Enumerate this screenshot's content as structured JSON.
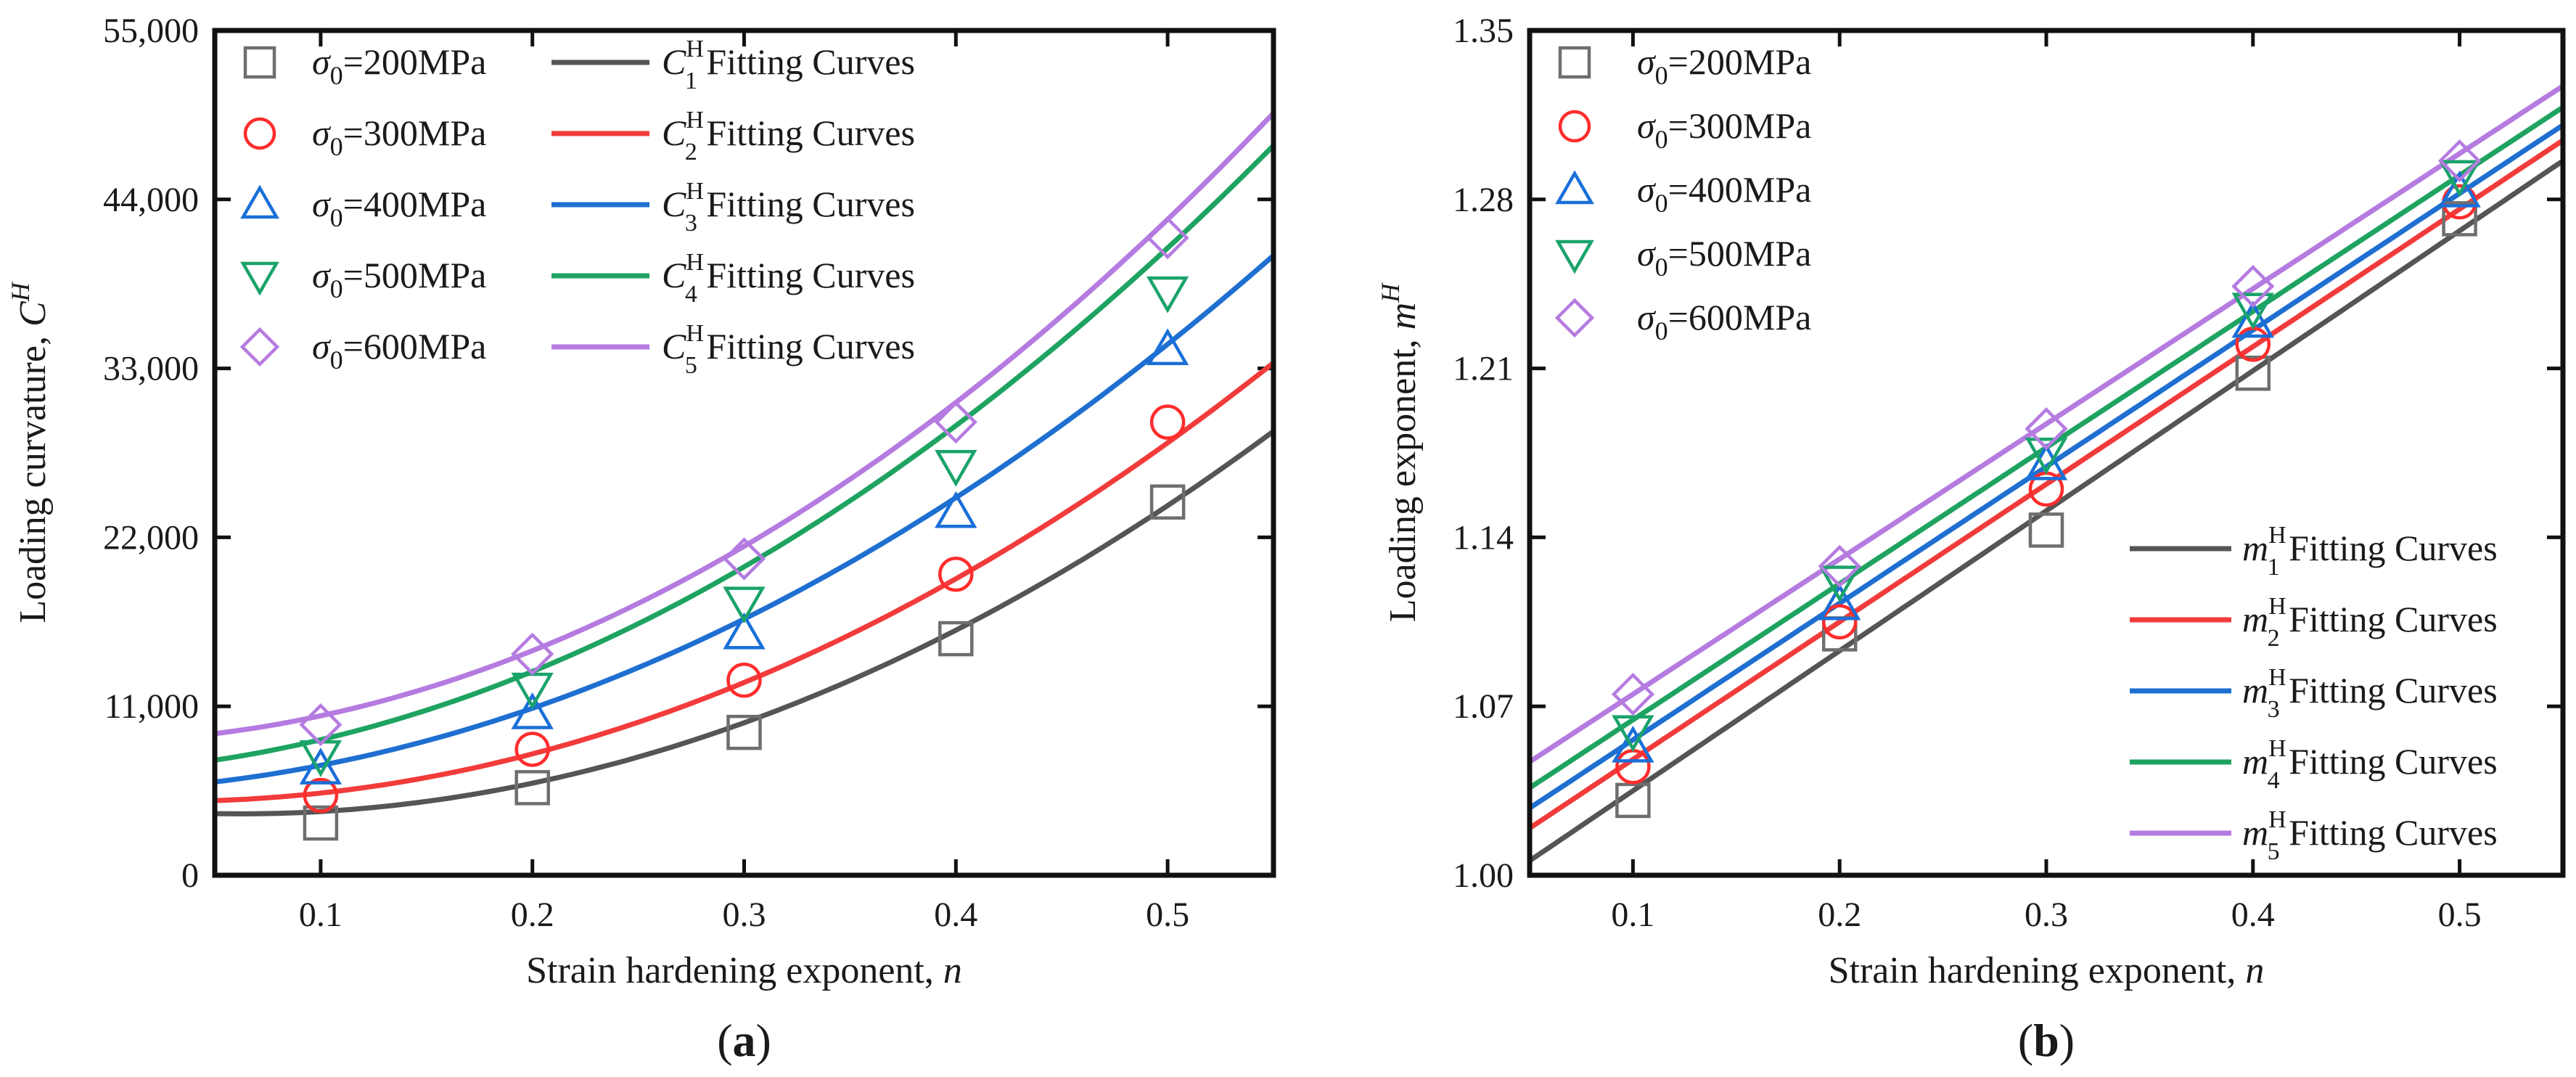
{
  "chart_data": [
    {
      "type": "line",
      "panel_label": "a",
      "title": "",
      "xlabel": "Strain hardening exponent,",
      "xlabel_var": "n",
      "ylabel": "Loading curvature,",
      "ylabel_var": "C",
      "ylabel_sup": "H",
      "xlim": [
        0.05,
        0.55
      ],
      "ylim": [
        0,
        55000
      ],
      "xticks": [
        0.1,
        0.2,
        0.3,
        0.4,
        0.5
      ],
      "xtick_labels": [
        "0.1",
        "0.2",
        "0.3",
        "0.4",
        "0.5"
      ],
      "yticks": [
        0,
        11000,
        22000,
        33000,
        44000,
        55000
      ],
      "ytick_labels": [
        "0",
        "11,000",
        "22,000",
        "33,000",
        "44,000",
        "55,000"
      ],
      "legend_placement": "top-left",
      "x": [
        0.1,
        0.2,
        0.3,
        0.4,
        0.5
      ],
      "series": [
        {
          "name": "σ0=200MPa",
          "sigma": "σ",
          "sub": "0",
          "value_text": "=200MPa",
          "marker": "square",
          "color": "#6e6e6e",
          "values": [
            3400,
            5700,
            9300,
            15400,
            24300
          ]
        },
        {
          "name": "σ0=300MPa",
          "sigma": "σ",
          "sub": "0",
          "value_text": "=300MPa",
          "marker": "circle",
          "color": "#ff2d2d",
          "values": [
            5200,
            8200,
            12700,
            19600,
            29500
          ]
        },
        {
          "name": "σ0=400MPa",
          "sigma": "σ",
          "sub": "0",
          "value_text": "=400MPa",
          "marker": "triangle-up",
          "color": "#1a6fd8",
          "values": [
            6900,
            10500,
            15700,
            23600,
            34200
          ]
        },
        {
          "name": "σ0=500MPa",
          "sigma": "σ",
          "sub": "0",
          "value_text": "=500MPa",
          "marker": "triangle-down",
          "color": "#1aa36b",
          "values": [
            7800,
            12200,
            17800,
            26700,
            38000
          ]
        },
        {
          "name": "σ0=600MPa",
          "sigma": "σ",
          "sub": "0",
          "value_text": "=600MPa",
          "marker": "diamond",
          "color": "#b57be0",
          "values": [
            9800,
            14400,
            20600,
            29500,
            41500
          ]
        }
      ],
      "fits": [
        {
          "name": "C1H Fitting Curves",
          "var": "C",
          "sup": "H",
          "sub": "1",
          "text": "Fitting Curves",
          "color": "#555555",
          "coeffs": [
            4394,
            -12900,
            104490
          ]
        },
        {
          "name": "C2H Fitting Curves",
          "var": "C",
          "sup": "H",
          "sub": "2",
          "text": "Fitting Curves",
          "color": "#f23b3b",
          "coeffs": [
            4900,
            -6000,
            105000
          ]
        },
        {
          "name": "C3H Fitting Curves",
          "var": "C",
          "sup": "H",
          "sub": "3",
          "text": "Fitting Curves",
          "color": "#1f6fd1",
          "coeffs": [
            5524,
            5850,
            104490
          ]
        },
        {
          "name": "C4H Fitting Curves",
          "var": "C",
          "sup": "H",
          "sub": "4",
          "text": "Fitting Curves",
          "color": "#1ea360",
          "coeffs": [
            6758,
            8780,
            118760
          ]
        },
        {
          "name": "C5H Fitting Curves",
          "var": "C",
          "sup": "H",
          "sub": "5",
          "text": "Fitting Curves",
          "color": "#b57be0",
          "coeffs": [
            8700,
            4000,
            128000
          ]
        }
      ]
    },
    {
      "type": "line",
      "panel_label": "b",
      "title": "",
      "xlabel": "Strain hardening exponent,",
      "xlabel_var": "n",
      "ylabel": "Loading exponent,",
      "ylabel_var": "m",
      "ylabel_sup": "H",
      "xlim": [
        0.05,
        0.55
      ],
      "ylim": [
        1.0,
        1.35
      ],
      "xticks": [
        0.1,
        0.2,
        0.3,
        0.4,
        0.5
      ],
      "xtick_labels": [
        "0.1",
        "0.2",
        "0.3",
        "0.4",
        "0.5"
      ],
      "yticks": [
        1.0,
        1.07,
        1.14,
        1.21,
        1.28,
        1.35
      ],
      "ytick_labels": [
        "1.00",
        "1.07",
        "1.14",
        "1.21",
        "1.28",
        "1.35"
      ],
      "legend_placement": "top-left / bottom-right",
      "x": [
        0.1,
        0.2,
        0.3,
        0.4,
        0.5
      ],
      "series": [
        {
          "name": "σ0=200MPa",
          "sigma": "σ",
          "sub": "0",
          "value_text": "=200MPa",
          "marker": "square",
          "color": "#6e6e6e",
          "values": [
            1.031,
            1.1,
            1.143,
            1.208,
            1.272
          ]
        },
        {
          "name": "σ0=300MPa",
          "sigma": "σ",
          "sub": "0",
          "value_text": "=300MPa",
          "marker": "circle",
          "color": "#ff2d2d",
          "values": [
            1.045,
            1.105,
            1.16,
            1.22,
            1.279
          ]
        },
        {
          "name": "σ0=400MPa",
          "sigma": "σ",
          "sub": "0",
          "value_text": "=400MPa",
          "marker": "triangle-up",
          "color": "#1a6fd8",
          "values": [
            1.053,
            1.112,
            1.17,
            1.229,
            1.283
          ]
        },
        {
          "name": "σ0=500MPa",
          "sigma": "σ",
          "sub": "0",
          "value_text": "=500MPa",
          "marker": "triangle-down",
          "color": "#1aa36b",
          "values": [
            1.06,
            1.122,
            1.175,
            1.235,
            1.29
          ]
        },
        {
          "name": "σ0=600MPa",
          "sigma": "σ",
          "sub": "0",
          "value_text": "=600MPa",
          "marker": "diamond",
          "color": "#b57be0",
          "values": [
            1.075,
            1.128,
            1.185,
            1.244,
            1.296
          ]
        }
      ],
      "fits": [
        {
          "name": "m1H Fitting Curves",
          "var": "m",
          "sup": "H",
          "sub": "1",
          "text": "Fitting Curves",
          "color": "#555555",
          "coeffs": [
            0.977,
            0.58
          ]
        },
        {
          "name": "m2H Fitting Curves",
          "var": "m",
          "sup": "H",
          "sub": "2",
          "text": "Fitting Curves",
          "color": "#f23b3b",
          "coeffs": [
            0.991,
            0.57
          ]
        },
        {
          "name": "m3H Fitting Curves",
          "var": "m",
          "sup": "H",
          "sub": "3",
          "text": "Fitting Curves",
          "color": "#1f6fd1",
          "coeffs": [
            0.9995,
            0.566
          ]
        },
        {
          "name": "m4H Fitting Curves",
          "var": "m",
          "sup": "H",
          "sub": "4",
          "text": "Fitting Curves",
          "color": "#1ea360",
          "coeffs": [
            1.008,
            0.564
          ]
        },
        {
          "name": "m5H Fitting Curves",
          "var": "m",
          "sup": "H",
          "sub": "5",
          "text": "Fitting Curves",
          "color": "#b57be0",
          "coeffs": [
            1.019,
            0.56
          ]
        }
      ]
    }
  ]
}
